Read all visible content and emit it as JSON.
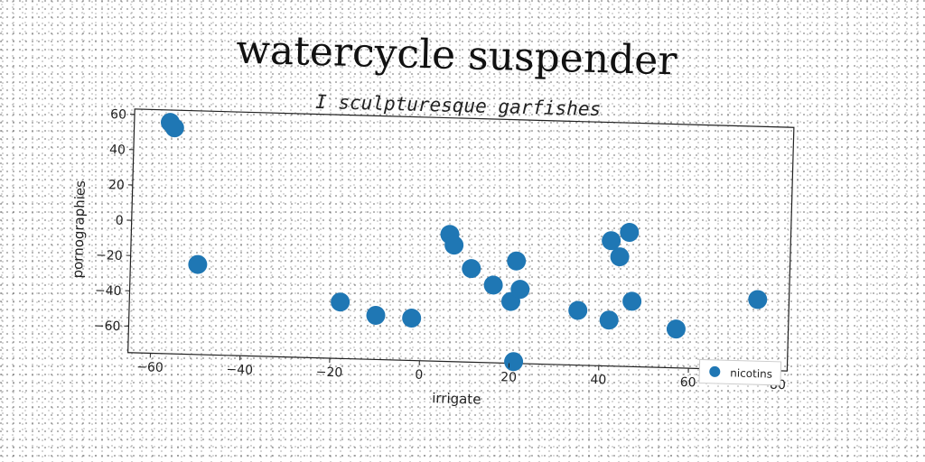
{
  "chart_data": {
    "type": "scatter",
    "title": "watercycle suspender",
    "subtitle": "I sculpturesque garfishes",
    "xlabel": "irrigate",
    "ylabel": "pornographies",
    "xlim": [
      -65,
      82
    ],
    "ylim": [
      -75,
      63
    ],
    "xticks": [
      -60,
      -40,
      -20,
      0,
      20,
      40,
      60,
      80
    ],
    "yticks": [
      60,
      40,
      20,
      0,
      -20,
      -40,
      -60
    ],
    "grid": false,
    "legend_position": "lower-right",
    "series": [
      {
        "name": "nicotins",
        "color": "#1f77b4",
        "points": [
          {
            "x": -57,
            "y": 56
          },
          {
            "x": -56,
            "y": 53
          },
          {
            "x": -50,
            "y": -24
          },
          {
            "x": -18,
            "y": -43
          },
          {
            "x": -10,
            "y": -50
          },
          {
            "x": -2,
            "y": -51
          },
          {
            "x": 6,
            "y": -3
          },
          {
            "x": 7,
            "y": -9
          },
          {
            "x": 11,
            "y": -22
          },
          {
            "x": 16,
            "y": -31
          },
          {
            "x": 20,
            "y": -40
          },
          {
            "x": 21,
            "y": -17
          },
          {
            "x": 22,
            "y": -33
          },
          {
            "x": 21,
            "y": -74
          },
          {
            "x": 35,
            "y": -44
          },
          {
            "x": 42,
            "y": -4
          },
          {
            "x": 44,
            "y": -13
          },
          {
            "x": 46,
            "y": 1
          },
          {
            "x": 42,
            "y": -49
          },
          {
            "x": 47,
            "y": -38
          },
          {
            "x": 57,
            "y": -53
          },
          {
            "x": 75,
            "y": -35
          }
        ]
      }
    ]
  }
}
